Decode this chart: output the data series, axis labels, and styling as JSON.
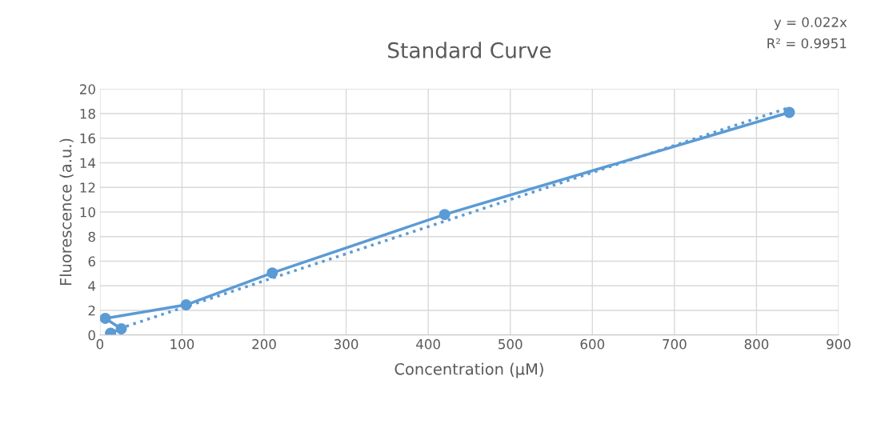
{
  "chart_data": {
    "type": "line",
    "title": "Standard Curve",
    "xlabel": "Concentration (µM)",
    "ylabel": "Fluorescence (a.u.)",
    "annotations": [
      "y = 0.022x",
      "R² = 0.9951"
    ],
    "series": [
      {
        "color": "#5b9bd5",
        "x": [
          840,
          420,
          210,
          105,
          6.5,
          26,
          13
        ],
        "values": [
          18.1,
          9.8,
          5.05,
          2.45,
          1.35,
          0.5,
          0.15
        ],
        "marker": "circle",
        "line_style": "solid"
      },
      {
        "color": "#5b9bd5",
        "x": [
          6.5,
          840
        ],
        "values": [
          0.14,
          18.5
        ],
        "marker": "none",
        "line_style": "dotted"
      }
    ],
    "xlim": [
      0,
      900
    ],
    "xticks": [
      0,
      100,
      200,
      300,
      400,
      500,
      600,
      700,
      800,
      900
    ],
    "ylim": [
      0,
      20
    ],
    "yticks": [
      0,
      2,
      4,
      6,
      8,
      10,
      12,
      14,
      16,
      18,
      20
    ],
    "grid": true,
    "legend": false
  }
}
